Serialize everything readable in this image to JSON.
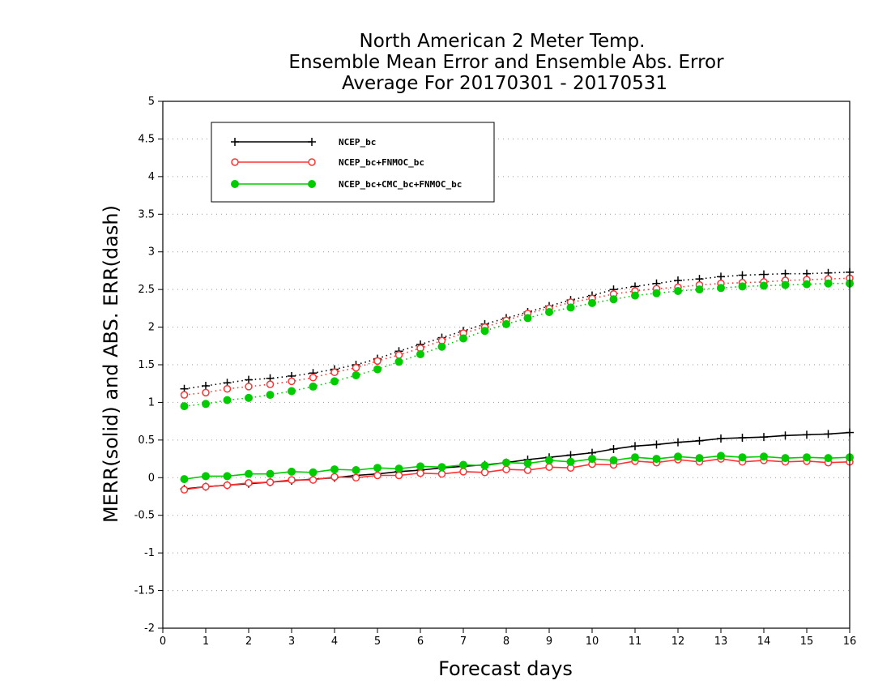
{
  "chart_data": {
    "type": "line",
    "title": [
      "North American 2 Meter Temp.",
      "Ensemble Mean Error and Ensemble Abs. Error",
      "Average For 20170301 - 20170531"
    ],
    "xlabel": "Forecast days",
    "ylabel": "MERR(solid) and ABS. ERR(dash)",
    "xlim": [
      0,
      16
    ],
    "ylim": [
      -2,
      5
    ],
    "xticks": [
      0,
      1,
      2,
      3,
      4,
      5,
      6,
      7,
      8,
      9,
      10,
      11,
      12,
      13,
      14,
      15,
      16
    ],
    "yticks": [
      -2,
      -1.5,
      -1,
      -0.5,
      0,
      0.5,
      1,
      1.5,
      2,
      2.5,
      3,
      3.5,
      4,
      4.5,
      5
    ],
    "ytick_labels": [
      "-2",
      "-1.5",
      "-1",
      "-0.5",
      "0",
      "0.5",
      "1",
      "1.5",
      "2",
      "2.5",
      "3",
      "3.5",
      "4",
      "4.5",
      "5"
    ],
    "grid": "horizontal dotted",
    "legend_position": "top-left",
    "x": [
      0.5,
      1,
      1.5,
      2,
      2.5,
      3,
      3.5,
      4,
      4.5,
      5,
      5.5,
      6,
      6.5,
      7,
      7.5,
      8,
      8.5,
      9,
      9.5,
      10,
      10.5,
      11,
      11.5,
      12,
      12.5,
      13,
      13.5,
      14,
      14.5,
      15,
      15.5,
      16
    ],
    "series": [
      {
        "name": "NCEP_bc",
        "color": "#000000",
        "marker": "plus",
        "merr": [
          -0.15,
          -0.12,
          -0.1,
          -0.08,
          -0.06,
          -0.04,
          -0.02,
          0.0,
          0.03,
          0.05,
          0.08,
          0.1,
          0.13,
          0.15,
          0.17,
          0.2,
          0.24,
          0.27,
          0.3,
          0.33,
          0.38,
          0.42,
          0.44,
          0.47,
          0.49,
          0.52,
          0.53,
          0.54,
          0.56,
          0.57,
          0.58,
          0.6
        ],
        "abs_err": [
          1.18,
          1.22,
          1.26,
          1.3,
          1.32,
          1.35,
          1.39,
          1.44,
          1.5,
          1.58,
          1.68,
          1.77,
          1.86,
          1.95,
          2.04,
          2.12,
          2.2,
          2.28,
          2.36,
          2.42,
          2.5,
          2.54,
          2.58,
          2.62,
          2.64,
          2.67,
          2.69,
          2.7,
          2.71,
          2.71,
          2.72,
          2.73
        ]
      },
      {
        "name": "NCEP_bc+FNMOC_bc",
        "color": "#ff3333",
        "marker": "open-circle",
        "merr": [
          -0.16,
          -0.12,
          -0.1,
          -0.07,
          -0.06,
          -0.03,
          -0.03,
          0.01,
          0.0,
          0.03,
          0.03,
          0.06,
          0.05,
          0.08,
          0.07,
          0.11,
          0.1,
          0.14,
          0.13,
          0.18,
          0.17,
          0.22,
          0.2,
          0.24,
          0.21,
          0.25,
          0.21,
          0.23,
          0.21,
          0.22,
          0.2,
          0.21
        ],
        "abs_err": [
          1.1,
          1.13,
          1.18,
          1.21,
          1.24,
          1.28,
          1.33,
          1.4,
          1.46,
          1.55,
          1.63,
          1.72,
          1.82,
          1.92,
          2.0,
          2.09,
          2.18,
          2.25,
          2.33,
          2.38,
          2.44,
          2.48,
          2.51,
          2.53,
          2.56,
          2.58,
          2.59,
          2.6,
          2.62,
          2.63,
          2.64,
          2.65
        ]
      },
      {
        "name": "NCEP_bc+CMC_bc+FNMOC_bc",
        "color": "#00cc00",
        "marker": "filled-circle",
        "merr": [
          -0.02,
          0.02,
          0.02,
          0.05,
          0.05,
          0.08,
          0.07,
          0.11,
          0.1,
          0.13,
          0.12,
          0.15,
          0.14,
          0.17,
          0.16,
          0.2,
          0.19,
          0.23,
          0.21,
          0.25,
          0.23,
          0.27,
          0.25,
          0.28,
          0.26,
          0.29,
          0.27,
          0.28,
          0.26,
          0.27,
          0.26,
          0.27
        ],
        "abs_err": [
          0.95,
          0.98,
          1.03,
          1.06,
          1.1,
          1.15,
          1.21,
          1.28,
          1.36,
          1.44,
          1.54,
          1.64,
          1.74,
          1.85,
          1.95,
          2.04,
          2.12,
          2.2,
          2.26,
          2.32,
          2.37,
          2.42,
          2.45,
          2.48,
          2.5,
          2.52,
          2.54,
          2.55,
          2.56,
          2.57,
          2.58,
          2.58
        ]
      }
    ]
  }
}
